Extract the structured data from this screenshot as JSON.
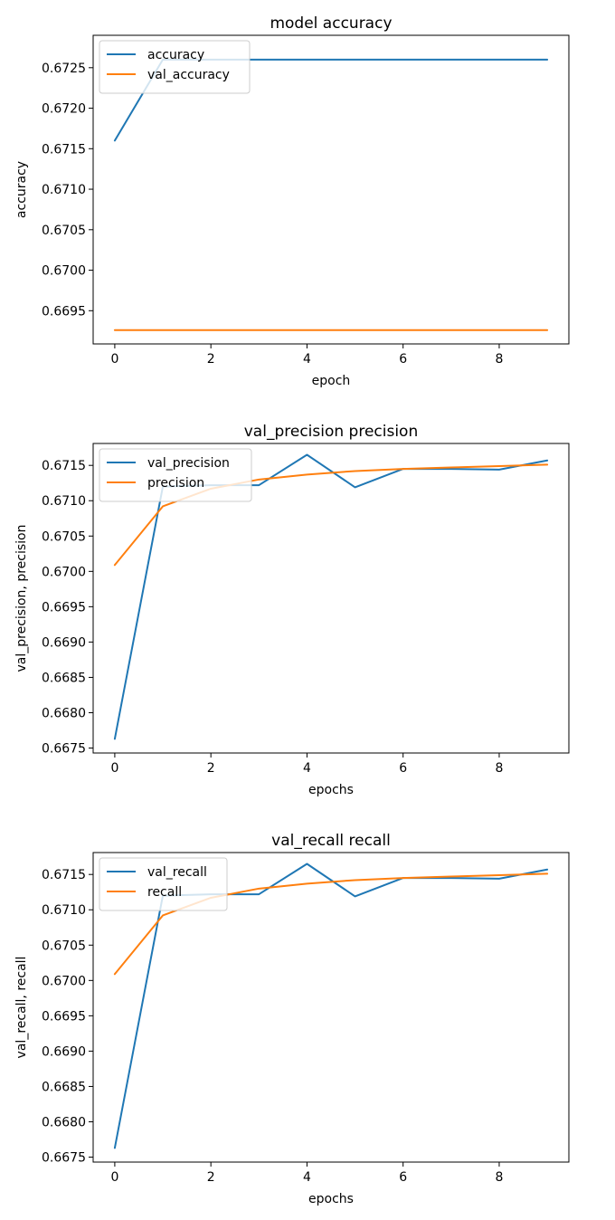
{
  "chart_data": [
    {
      "type": "line",
      "title": "model accuracy",
      "xlabel": "epoch",
      "ylabel": "accuracy",
      "x": [
        0,
        1,
        2,
        3,
        4,
        5,
        6,
        7,
        8,
        9
      ],
      "xlim": [
        -0.45,
        9.45
      ],
      "ylim": [
        0.66909,
        0.6729
      ],
      "xticks": [
        "0",
        "2",
        "4",
        "6",
        "8"
      ],
      "yticks": [
        "0.6695",
        "0.6700",
        "0.6705",
        "0.6710",
        "0.6715",
        "0.6720",
        "0.6725"
      ],
      "legend_position": "upper left",
      "series": [
        {
          "name": "accuracy",
          "color": "#1f77b4",
          "values": [
            0.6716,
            0.6726,
            0.6726,
            0.6726,
            0.6726,
            0.6726,
            0.6726,
            0.6726,
            0.6726,
            0.6726
          ]
        },
        {
          "name": "val_accuracy",
          "color": "#ff7f0e",
          "values": [
            0.66926,
            0.66926,
            0.66926,
            0.66926,
            0.66926,
            0.66926,
            0.66926,
            0.66926,
            0.66926,
            0.66926
          ]
        }
      ]
    },
    {
      "type": "line",
      "title": "val_precision precision",
      "xlabel": "epochs",
      "ylabel": "val_precision, precision",
      "x": [
        0,
        1,
        2,
        3,
        4,
        5,
        6,
        7,
        8,
        9
      ],
      "xlim": [
        -0.45,
        9.45
      ],
      "ylim": [
        0.66743,
        0.67181
      ],
      "xticks": [
        "0",
        "2",
        "4",
        "6",
        "8"
      ],
      "yticks": [
        "0.6675",
        "0.6680",
        "0.6685",
        "0.6690",
        "0.6695",
        "0.6700",
        "0.6705",
        "0.6710",
        "0.6715"
      ],
      "legend_position": "upper left",
      "series": [
        {
          "name": "val_precision",
          "color": "#1f77b4",
          "values": [
            0.66763,
            0.6712,
            0.67122,
            0.67122,
            0.67165,
            0.67119,
            0.67145,
            0.67145,
            0.67144,
            0.67157
          ]
        },
        {
          "name": "precision",
          "color": "#ff7f0e",
          "values": [
            0.67009,
            0.67092,
            0.67117,
            0.6713,
            0.67137,
            0.67142,
            0.67145,
            0.67147,
            0.67149,
            0.67151
          ]
        }
      ]
    },
    {
      "type": "line",
      "title": "val_recall recall",
      "xlabel": "epochs",
      "ylabel": "val_recall, recall",
      "x": [
        0,
        1,
        2,
        3,
        4,
        5,
        6,
        7,
        8,
        9
      ],
      "xlim": [
        -0.45,
        9.45
      ],
      "ylim": [
        0.66743,
        0.67181
      ],
      "xticks": [
        "0",
        "2",
        "4",
        "6",
        "8"
      ],
      "yticks": [
        "0.6675",
        "0.6680",
        "0.6685",
        "0.6690",
        "0.6695",
        "0.6700",
        "0.6705",
        "0.6710",
        "0.6715"
      ],
      "legend_position": "upper left",
      "series": [
        {
          "name": "val_recall",
          "color": "#1f77b4",
          "values": [
            0.66763,
            0.6712,
            0.67122,
            0.67122,
            0.67165,
            0.67119,
            0.67145,
            0.67145,
            0.67144,
            0.67157
          ]
        },
        {
          "name": "recall",
          "color": "#ff7f0e",
          "values": [
            0.67009,
            0.67092,
            0.67117,
            0.6713,
            0.67137,
            0.67142,
            0.67145,
            0.67147,
            0.67149,
            0.67151
          ]
        }
      ]
    }
  ]
}
